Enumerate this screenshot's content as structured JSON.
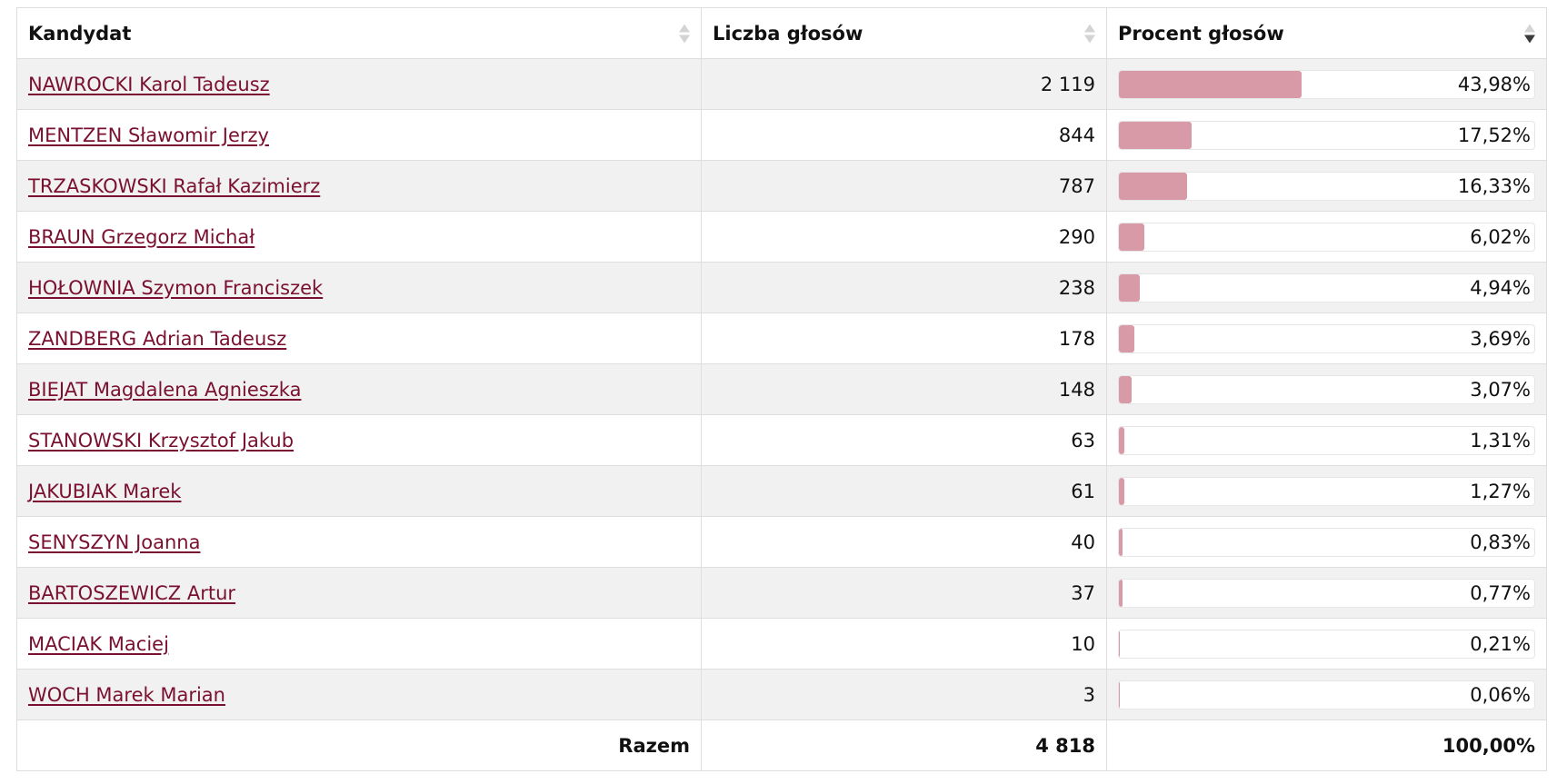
{
  "table": {
    "headers": {
      "candidate": "Kandydat",
      "votes": "Liczba głosów",
      "percent": "Procent głosów"
    },
    "sort": {
      "column": "percent",
      "direction": "descending"
    },
    "rows": [
      {
        "name": "NAWROCKI Karol Tadeusz",
        "votes": "2 119",
        "percent": "43,98%",
        "share": 43.98
      },
      {
        "name": "MENTZEN Sławomir Jerzy",
        "votes": "844",
        "percent": "17,52%",
        "share": 17.52
      },
      {
        "name": "TRZASKOWSKI Rafał Kazimierz",
        "votes": "787",
        "percent": "16,33%",
        "share": 16.33
      },
      {
        "name": "BRAUN Grzegorz Michał",
        "votes": "290",
        "percent": "6,02%",
        "share": 6.02
      },
      {
        "name": "HOŁOWNIA Szymon Franciszek",
        "votes": "238",
        "percent": "4,94%",
        "share": 4.94
      },
      {
        "name": "ZANDBERG Adrian Tadeusz",
        "votes": "178",
        "percent": "3,69%",
        "share": 3.69
      },
      {
        "name": "BIEJAT Magdalena Agnieszka",
        "votes": "148",
        "percent": "3,07%",
        "share": 3.07
      },
      {
        "name": "STANOWSKI Krzysztof Jakub",
        "votes": "63",
        "percent": "1,31%",
        "share": 1.31
      },
      {
        "name": "JAKUBIAK Marek",
        "votes": "61",
        "percent": "1,27%",
        "share": 1.27
      },
      {
        "name": "SENYSZYN Joanna",
        "votes": "40",
        "percent": "0,83%",
        "share": 0.83
      },
      {
        "name": "BARTOSZEWICZ Artur",
        "votes": "37",
        "percent": "0,77%",
        "share": 0.77
      },
      {
        "name": "MACIAK Maciej",
        "votes": "10",
        "percent": "0,21%",
        "share": 0.21
      },
      {
        "name": "WOCH Marek Marian",
        "votes": "3",
        "percent": "0,06%",
        "share": 0.06
      }
    ],
    "footer": {
      "label": "Razem",
      "votes": "4 818",
      "percent": "100,00%"
    }
  },
  "colors": {
    "bar_fill": "#d99aa7",
    "link": "#7a1030",
    "row_stripe": "#f1f1f1"
  }
}
